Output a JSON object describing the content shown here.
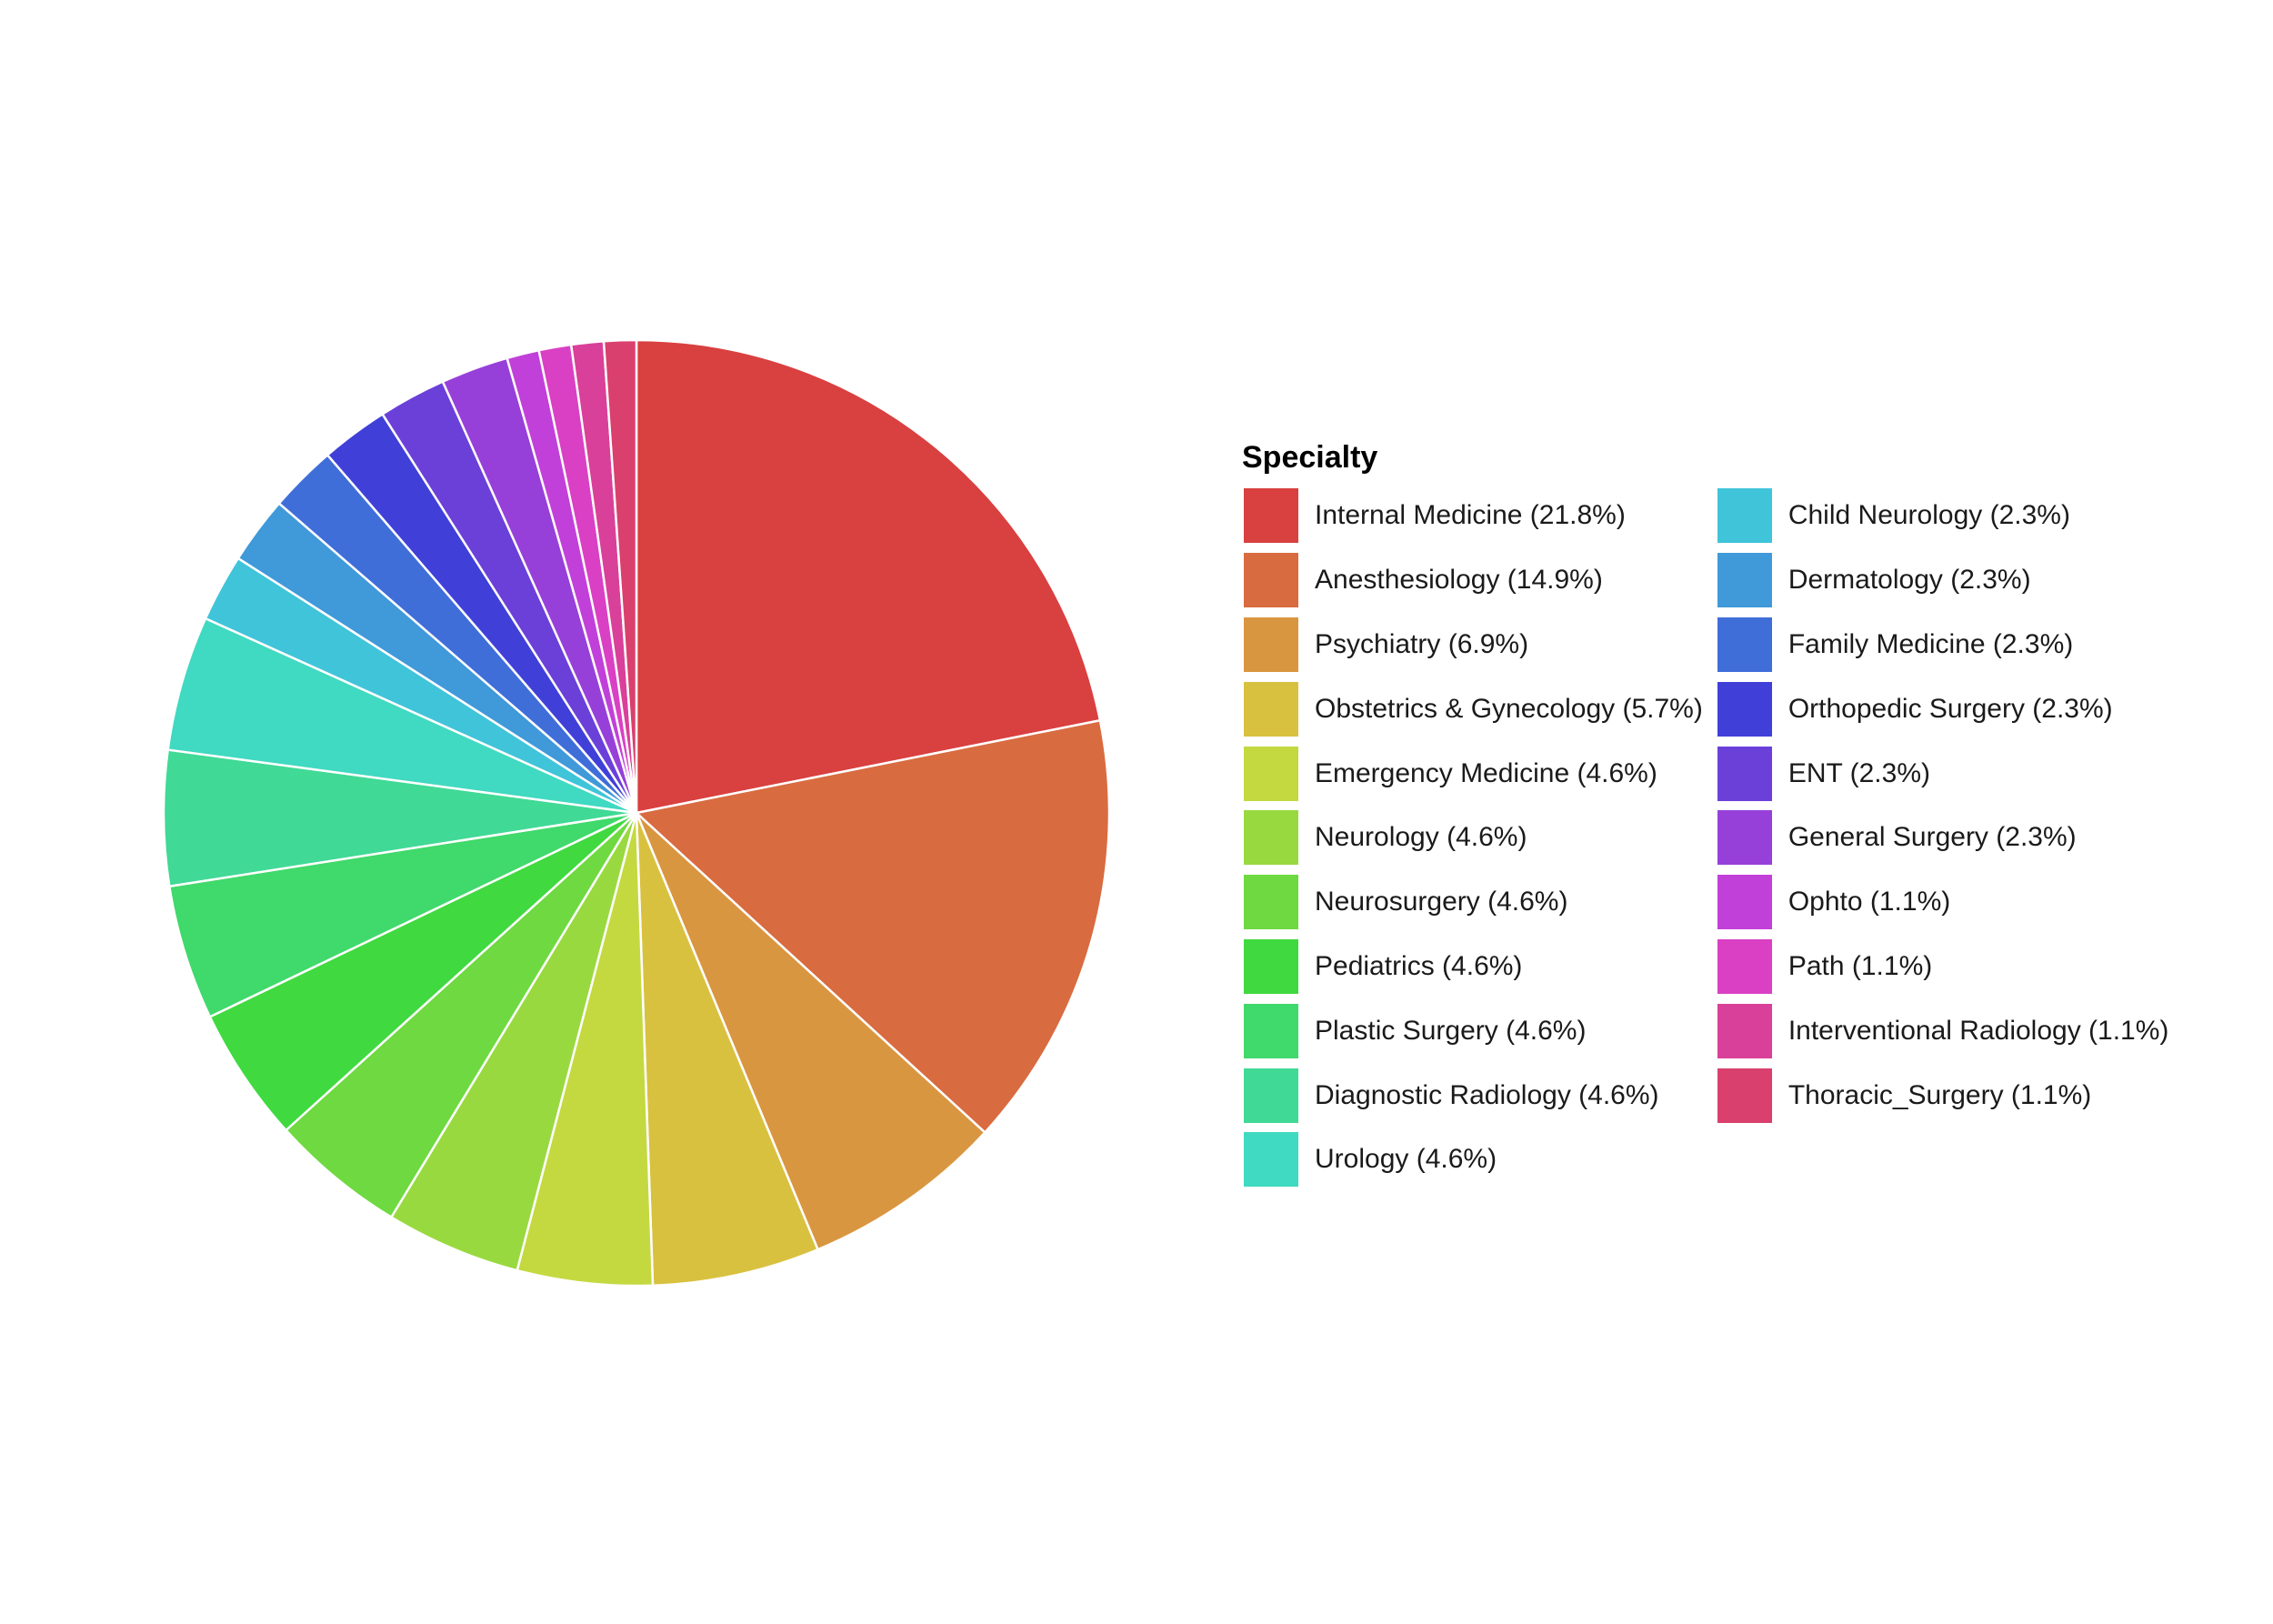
{
  "chart_data": {
    "type": "pie",
    "title": "",
    "legend": {
      "title": "Specialty",
      "placement": "right",
      "columns": 2
    },
    "direction": "clockwise-from-top",
    "slices": [
      {
        "label": "Internal Medicine (21.8%)",
        "value": 21.8,
        "color": "#d94040"
      },
      {
        "label": "Anesthesiology (14.9%)",
        "value": 14.9,
        "color": "#d96b40"
      },
      {
        "label": "Psychiatry (6.9%)",
        "value": 6.9,
        "color": "#d99640"
      },
      {
        "label": "Obstetrics & Gynecology (5.7%)",
        "value": 5.7,
        "color": "#d9c140"
      },
      {
        "label": "Emergency Medicine (4.6%)",
        "value": 4.6,
        "color": "#c4d940"
      },
      {
        "label": "Neurology (4.6%)",
        "value": 4.6,
        "color": "#99d940"
      },
      {
        "label": "Neurosurgery (4.6%)",
        "value": 4.6,
        "color": "#6ed940"
      },
      {
        "label": "Pediatrics (4.6%)",
        "value": 4.6,
        "color": "#40d940"
      },
      {
        "label": "Plastic Surgery (4.6%)",
        "value": 4.6,
        "color": "#40d96b"
      },
      {
        "label": "Diagnostic Radiology (4.6%)",
        "value": 4.6,
        "color": "#40d996"
      },
      {
        "label": "Urology (4.6%)",
        "value": 4.6,
        "color": "#40d9c1"
      },
      {
        "label": "Child Neurology (2.3%)",
        "value": 2.3,
        "color": "#40c4d9"
      },
      {
        "label": "Dermatology (2.3%)",
        "value": 2.3,
        "color": "#4099d9"
      },
      {
        "label": "Family Medicine (2.3%)",
        "value": 2.3,
        "color": "#406ed9"
      },
      {
        "label": "Orthopedic Surgery (2.3%)",
        "value": 2.3,
        "color": "#4040d9"
      },
      {
        "label": "ENT (2.3%)",
        "value": 2.3,
        "color": "#6b40d9"
      },
      {
        "label": "General Surgery (2.3%)",
        "value": 2.3,
        "color": "#9640d9"
      },
      {
        "label": "Ophto (1.1%)",
        "value": 1.1,
        "color": "#c140d9"
      },
      {
        "label": "Path (1.1%)",
        "value": 1.1,
        "color": "#d940c4"
      },
      {
        "label": "Interventional Radiology (1.1%)",
        "value": 1.1,
        "color": "#d94099"
      },
      {
        "label": "Thoracic_Surgery (1.1%)",
        "value": 1.1,
        "color": "#d9406e"
      }
    ]
  }
}
